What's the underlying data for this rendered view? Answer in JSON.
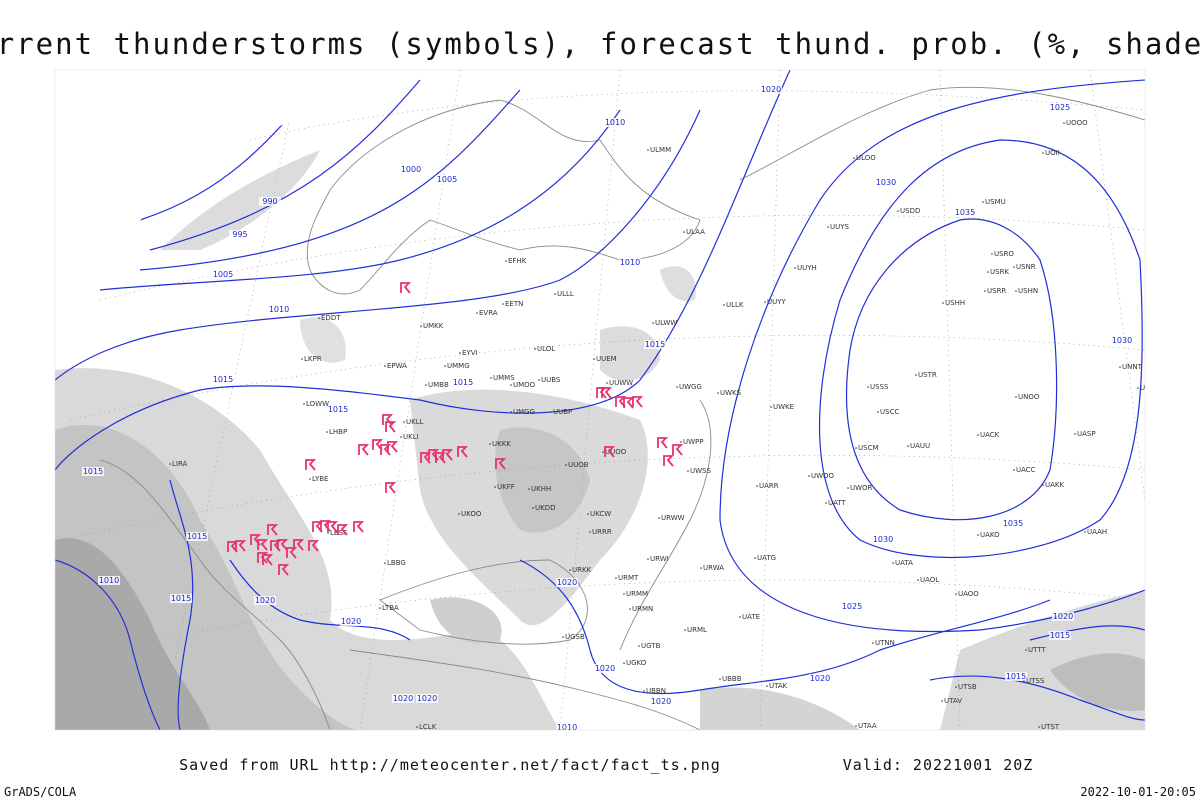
{
  "header": {
    "title": "Current thunderstorms (symbols), forecast thund. prob. (%, shaded)"
  },
  "footer": {
    "source": "Saved from URL http://meteocenter.net/fact/fact_ts.png",
    "valid": "Valid: 20221001 20Z",
    "credit": "GrADS/COLA",
    "timestamp": "2022-10-01-20:05"
  },
  "isobar_labels": [
    "1020",
    "1025",
    "1010",
    "1000",
    "1005",
    "990",
    "1030",
    "1035",
    "995",
    "1005",
    "1010",
    "1010",
    "1015",
    "1015",
    "1015",
    "1015",
    "1030",
    "1015",
    "1035",
    "1030",
    "1015",
    "1010",
    "1015",
    "1020",
    "1025",
    "1020",
    "1020",
    "1020",
    "1015",
    "1020",
    "1020",
    "1020",
    "1020",
    "1020",
    "1010",
    "1015"
  ],
  "stations": [
    "ULMM",
    "ULOO",
    "ULAA",
    "UUYS",
    "USDD",
    "USMU",
    "UUYH",
    "ULLL",
    "UUYY",
    "ULLK",
    "EVRA",
    "EDDT",
    "ULWW",
    "UMKK",
    "UMMS",
    "UMMG",
    "EYVI",
    "ULOL",
    "UUEM",
    "EPWA",
    "UMBB",
    "UMOO",
    "UUBS",
    "UUWW",
    "UWGG",
    "UWKS",
    "USSS",
    "USTR",
    "USHH",
    "UMGG",
    "UUBP",
    "UWKE",
    "USCC",
    "UNOO",
    "UKLL",
    "UKLI",
    "UKKK",
    "UUOB",
    "UUOO",
    "UWPP",
    "UWSS",
    "USCM",
    "UAUU",
    "UACK",
    "UASP",
    "UACC",
    "UKHH",
    "UKFF",
    "UKDD",
    "UKOO",
    "UWOO",
    "UWOR",
    "UATT",
    "UARR",
    "UAKK",
    "URRR",
    "URWW",
    "UKCW",
    "UATG",
    "URWI",
    "URKK",
    "URWA",
    "UATA",
    "UAOL",
    "UAOO",
    "UAKO",
    "UAAH",
    "LBBG",
    "URMT",
    "URMM",
    "URMN",
    "UATE",
    "URML",
    "UTNN",
    "UGSB",
    "UGTB",
    "UBBB",
    "UTAK",
    "UTAA",
    "UGKO",
    "UBBN",
    "LIRA",
    "LOWW",
    "LKPR",
    "LHBP",
    "LYBE",
    "LBSF",
    "LTBA",
    "LCLK",
    "EFHK",
    "EETN",
    "UTTT",
    "UTSS",
    "UTSB",
    "UTAV",
    "UTST",
    "UOOO",
    "UOII",
    "USRO",
    "USRK",
    "USNR",
    "USRR",
    "USHN",
    "UNNT",
    "UNBB"
  ]
}
